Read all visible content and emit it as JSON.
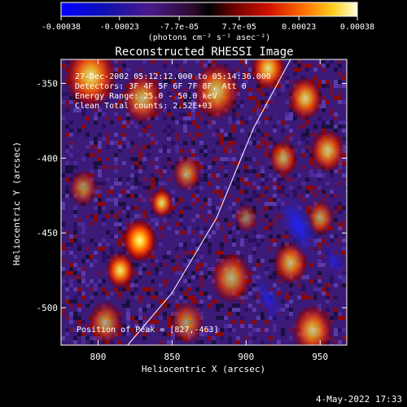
{
  "colorbar": {
    "tick_labels": [
      "-0.00038",
      "-0.00023",
      "-7.7e-05",
      "7.7e-05",
      "0.00023",
      "0.00038"
    ],
    "unit_label": "(photons cm⁻² s⁻¹ asec⁻²)",
    "range": [
      -0.00038,
      0.00038
    ]
  },
  "chart_data": {
    "type": "heatmap",
    "title": "Reconstructed RHESSI Image",
    "xlabel": "Heliocentric X (arcsec)",
    "ylabel": "Heliocentric Y (arcsec)",
    "xlim": [
      775,
      968
    ],
    "ylim": [
      -525,
      -334
    ],
    "x_ticks": [
      800,
      850,
      900,
      950
    ],
    "y_ticks": [
      -350,
      -400,
      -450,
      -500
    ],
    "annotations": [
      "27-Dec-2002 05:12:12.000 to 05:14:36.000",
      "Detectors: 3F 4F 5F 6F 7F 8F, Att 0",
      "Energy Range: 25.0 - 50.0 keV",
      "Clean    Total counts: 2.52E+03"
    ],
    "peak_label": "Position of Peak = [827,-463]",
    "peak": [
      827,
      -463
    ],
    "limb_points": [
      [
        820,
        -525
      ],
      [
        850,
        -490
      ],
      [
        880,
        -440
      ],
      [
        905,
        -380
      ],
      [
        930,
        -334
      ]
    ],
    "blobs": [
      {
        "x": 828,
        "y": -455,
        "s": 12,
        "a": 1.0
      },
      {
        "x": 815,
        "y": -475,
        "s": 10,
        "a": 0.9
      },
      {
        "x": 843,
        "y": -430,
        "s": 8,
        "a": 0.85
      },
      {
        "x": 860,
        "y": -410,
        "s": 10,
        "a": 0.6
      },
      {
        "x": 795,
        "y": -345,
        "s": 18,
        "a": 0.85
      },
      {
        "x": 830,
        "y": -360,
        "s": 14,
        "a": 0.7
      },
      {
        "x": 880,
        "y": -355,
        "s": 16,
        "a": 0.75
      },
      {
        "x": 915,
        "y": -340,
        "s": 12,
        "a": 0.85
      },
      {
        "x": 940,
        "y": -360,
        "s": 12,
        "a": 0.8
      },
      {
        "x": 955,
        "y": -395,
        "s": 12,
        "a": 0.75
      },
      {
        "x": 925,
        "y": -400,
        "s": 10,
        "a": 0.65
      },
      {
        "x": 890,
        "y": -480,
        "s": 14,
        "a": 0.65
      },
      {
        "x": 930,
        "y": -470,
        "s": 12,
        "a": 0.7
      },
      {
        "x": 950,
        "y": -440,
        "s": 10,
        "a": 0.6
      },
      {
        "x": 860,
        "y": -510,
        "s": 12,
        "a": 0.55
      },
      {
        "x": 805,
        "y": -510,
        "s": 12,
        "a": 0.6
      },
      {
        "x": 790,
        "y": -420,
        "s": 10,
        "a": 0.55
      },
      {
        "x": 945,
        "y": -515,
        "s": 14,
        "a": 0.75
      },
      {
        "x": 900,
        "y": -440,
        "s": 8,
        "a": 0.45
      }
    ],
    "cold_spots": [
      {
        "x": 935,
        "y": -445,
        "s": 16,
        "a": 1.0
      },
      {
        "x": 915,
        "y": -495,
        "s": 12,
        "a": 0.8
      },
      {
        "x": 960,
        "y": -470,
        "s": 10,
        "a": 0.7
      }
    ]
  },
  "footer": {
    "date": "4-May-2022 17:33"
  }
}
